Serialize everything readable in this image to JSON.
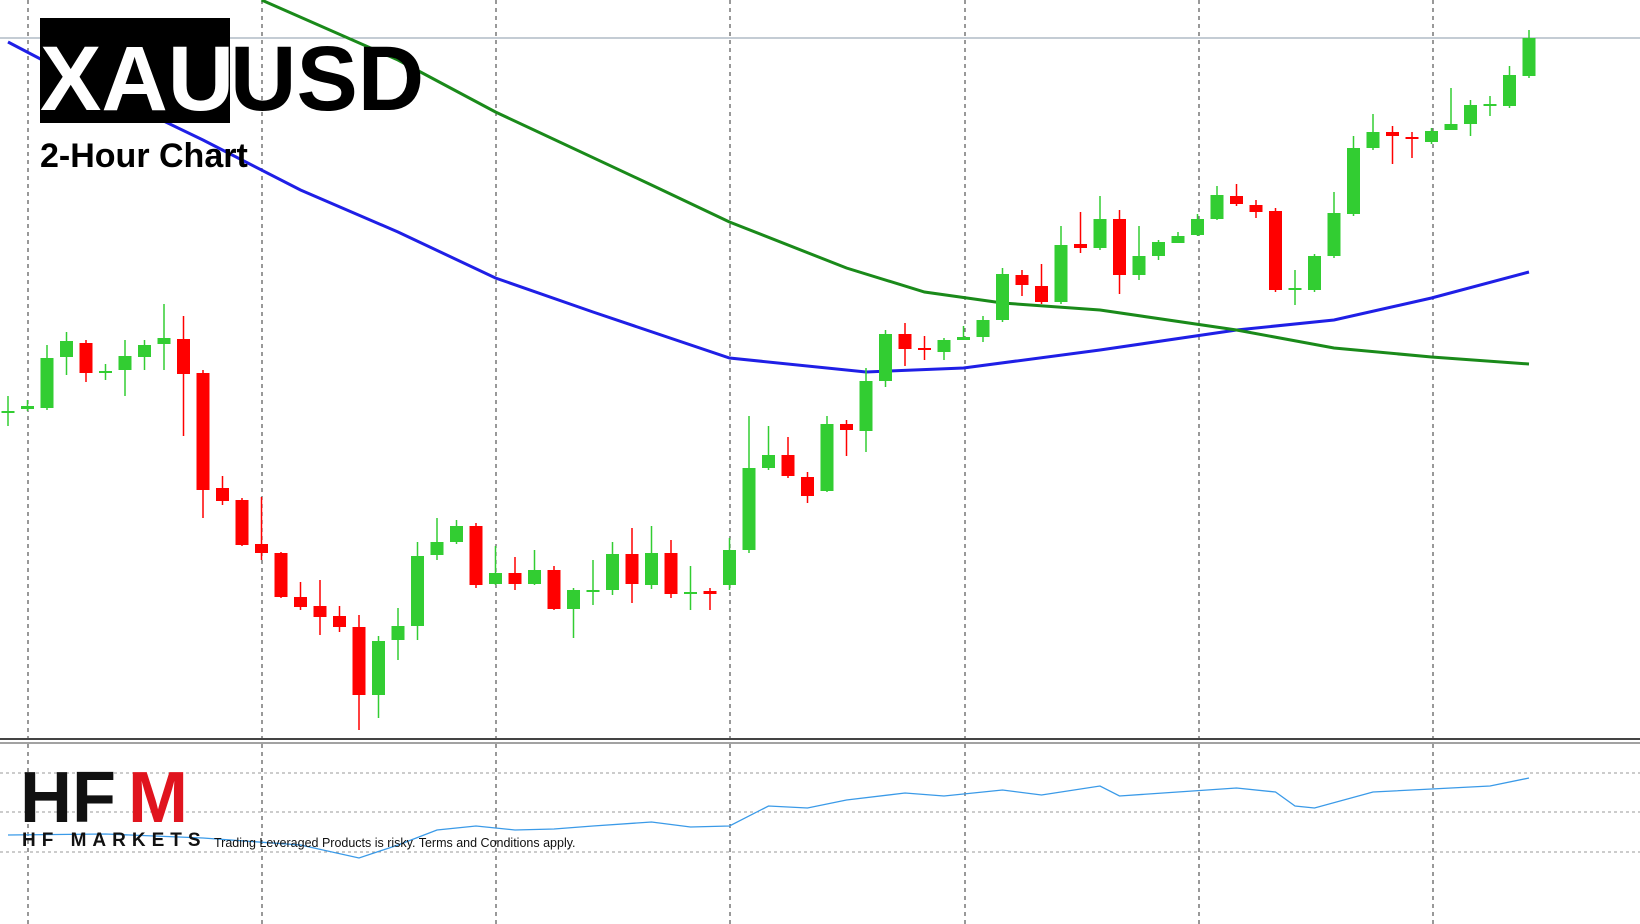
{
  "header": {
    "symbol_base": "XAU",
    "symbol_quote": "USD",
    "subtitle": "2-Hour Chart"
  },
  "footer": {
    "logo_left": "HF",
    "logo_right": "M",
    "brand": "HF MARKETS",
    "disclaimer": "Trading Leveraged Products is risky. Terms and Conditions apply."
  },
  "chart_data": {
    "type": "candlestick",
    "up_color": "#32cd32",
    "down_color": "#ff0000",
    "ylim": [
      0,
      740
    ],
    "open": [
      329,
      331,
      332,
      383,
      397,
      369,
      370,
      383,
      396,
      401,
      367,
      252,
      240,
      196,
      187,
      143,
      134,
      124,
      113,
      45,
      100,
      114,
      185,
      198,
      214,
      156,
      167,
      156,
      170,
      131,
      150,
      150,
      186,
      155,
      187,
      148,
      149,
      155,
      190,
      272,
      285,
      263,
      249,
      316,
      309,
      359,
      406,
      392,
      388,
      400,
      403,
      420,
      465,
      454,
      438,
      496,
      492,
      521,
      465,
      484,
      497,
      505,
      521,
      544,
      535,
      529,
      452,
      450,
      484,
      526,
      592,
      608,
      603,
      598,
      610,
      616,
      636,
      634,
      664
    ],
    "high": [
      344,
      340,
      395,
      408,
      400,
      376,
      400,
      400,
      436,
      424,
      370,
      264,
      242,
      243,
      188,
      158,
      160,
      134,
      125,
      104,
      132,
      198,
      222,
      220,
      217,
      194,
      183,
      190,
      174,
      152,
      180,
      198,
      212,
      214,
      200,
      174,
      152,
      202,
      324,
      314,
      303,
      268,
      324,
      320,
      372,
      410,
      417,
      404,
      402,
      414,
      424,
      472,
      470,
      476,
      514,
      528,
      544,
      530,
      514,
      500,
      508,
      526,
      554,
      556,
      540,
      532,
      470,
      486,
      548,
      604,
      626,
      614,
      608,
      612,
      652,
      640,
      644,
      674,
      710
    ],
    "low": [
      314,
      329,
      330,
      365,
      358,
      360,
      344,
      370,
      370,
      304,
      222,
      235,
      194,
      180,
      142,
      130,
      105,
      108,
      10,
      22,
      80,
      100,
      180,
      196,
      152,
      155,
      150,
      155,
      130,
      102,
      135,
      145,
      137,
      151,
      142,
      130,
      130,
      150,
      187,
      270,
      262,
      237,
      248,
      284,
      288,
      353,
      374,
      380,
      380,
      400,
      398,
      418,
      444,
      436,
      436,
      487,
      490,
      446,
      460,
      480,
      497,
      504,
      520,
      534,
      522,
      448,
      435,
      448,
      482,
      524,
      590,
      576,
      582,
      596,
      610,
      604,
      624,
      632,
      662
    ],
    "close": [
      329,
      334,
      382,
      399,
      367,
      369,
      384,
      395,
      402,
      366,
      250,
      239,
      195,
      187,
      143,
      133,
      123,
      113,
      45,
      99,
      114,
      184,
      198,
      214,
      155,
      167,
      156,
      170,
      131,
      150,
      150,
      186,
      156,
      187,
      146,
      148,
      146,
      190,
      272,
      285,
      264,
      244,
      316,
      310,
      359,
      406,
      391,
      391,
      400,
      403,
      420,
      466,
      455,
      438,
      495,
      492,
      521,
      465,
      484,
      498,
      504,
      521,
      545,
      536,
      528,
      450,
      452,
      484,
      527,
      592,
      608,
      604,
      601,
      609,
      616,
      635,
      636,
      665,
      702
    ],
    "lines": [
      {
        "color": "#1f1fe6",
        "x": [
          0,
          5,
          10,
          15,
          20,
          25,
          30,
          37,
          44,
          49,
          56,
          63,
          68,
          73,
          78
        ],
        "values": [
          698,
          647,
          600,
          550,
          508,
          462,
          428,
          382,
          368,
          372,
          390,
          410,
          420,
          442,
          468
        ]
      },
      {
        "color": "#1a8a1a",
        "x": [
          13,
          20,
          25,
          33,
          37,
          43,
          47,
          51,
          56,
          63,
          68,
          73,
          78
        ],
        "values": [
          740,
          680,
          628,
          555,
          518,
          472,
          448,
          437,
          430,
          410,
          392,
          383,
          376
        ]
      }
    ],
    "indicator": {
      "color": "#3a9ae8",
      "ylim": [
        0,
        142
      ],
      "x": [
        0,
        5,
        10,
        15,
        18,
        20,
        22,
        24,
        26,
        28,
        30,
        33,
        35,
        37,
        39,
        41,
        43,
        46,
        48,
        51,
        53,
        56,
        57,
        63,
        65,
        66,
        67,
        70,
        73,
        76,
        78
      ],
      "values": [
        49,
        50,
        46,
        39,
        26,
        39,
        54,
        58,
        54,
        55,
        58,
        62,
        57,
        58,
        78,
        76,
        84,
        91,
        88,
        94,
        89,
        98,
        88,
        96,
        92,
        78,
        76,
        92,
        95,
        98,
        106
      ]
    }
  }
}
